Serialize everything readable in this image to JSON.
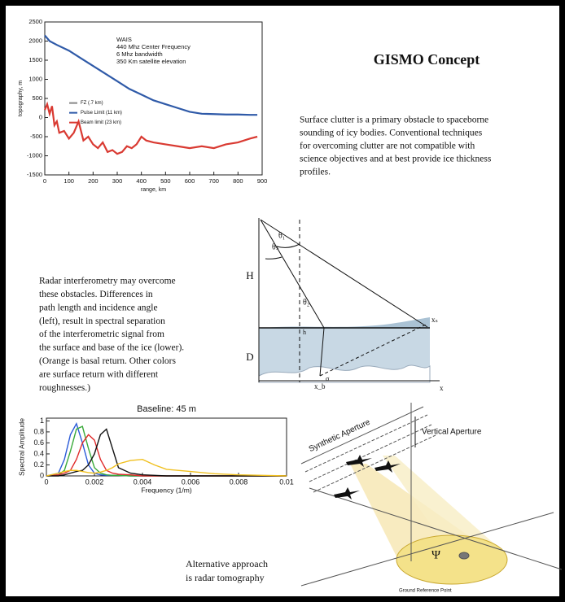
{
  "title": "GISMO Concept",
  "intro": {
    "lines": [
      "Surface clutter is a primary obstacle to spaceborne",
      "sounding of icy bodies.  Conventional techniques",
      "for overcoming clutter are not compatible with",
      "science objectives and at best provide ice thickness",
      "profiles."
    ]
  },
  "interferometry": {
    "lines": [
      "Radar interferometry may overcome",
      "these obstacles.  Differences in",
      "path length and incidence angle",
      "(left), result in spectral separation",
      "of the interferometric signal from",
      "the surface and base of the ice (lower).",
      "(Orange is basal return.  Other colors",
      "are surface return with different",
      "roughnesses.)"
    ]
  },
  "geometry": {
    "labels": {
      "H": "H",
      "D": "D",
      "theta1": "θ₁",
      "thetas": "θₛ",
      "theta2": "θ₂",
      "h": "h",
      "xs": "xₛ",
      "xb": "x_b",
      "x": "x",
      "sigma": "σ"
    }
  },
  "tomography": {
    "caption": [
      "Alternative approach",
      "is radar tomography"
    ],
    "labels": {
      "synthetic": "Synthetic Aperture",
      "vertical": "Vertical Aperture",
      "psi": "Ψ",
      "ground": "Ground Reference Point"
    }
  },
  "charts": [
    {
      "type": "line",
      "xlabel": "range, km",
      "ylabel": "topography, m",
      "annotations": [
        "WAIS",
        "440 Mhz Center Frequency",
        "6 Mhz bandwidth",
        "350 Km satellite elevation"
      ],
      "xlim": [
        0,
        900
      ],
      "ylim": [
        -1500,
        2500
      ],
      "xticks": [
        0,
        100,
        200,
        300,
        400,
        500,
        600,
        700,
        800,
        900
      ],
      "yticks": [
        -1500,
        -1000,
        -500,
        0,
        500,
        1000,
        1500,
        2000,
        2500
      ],
      "legend": "center left",
      "series": [
        {
          "name": "FZ (.7 km)",
          "color": "#888888",
          "x": [],
          "values": []
        },
        {
          "name": "Pulse Limit (11 km)",
          "color": "#2f5aa8",
          "x": [
            0,
            20,
            50,
            100,
            150,
            200,
            250,
            300,
            350,
            400,
            450,
            500,
            550,
            600,
            650,
            700,
            750,
            800,
            850,
            880
          ],
          "values": [
            2150,
            2000,
            1900,
            1750,
            1550,
            1350,
            1150,
            950,
            750,
            600,
            450,
            350,
            250,
            150,
            100,
            90,
            80,
            80,
            70,
            70
          ]
        },
        {
          "name": "Beam limit (23 km)",
          "color": "#d93a32",
          "x": [
            0,
            10,
            20,
            30,
            40,
            50,
            60,
            80,
            100,
            120,
            140,
            160,
            180,
            200,
            220,
            240,
            260,
            280,
            300,
            320,
            340,
            360,
            380,
            400,
            420,
            450,
            500,
            550,
            600,
            650,
            700,
            750,
            800,
            850,
            880
          ],
          "values": [
            200,
            350,
            100,
            300,
            -200,
            -100,
            -400,
            -350,
            -550,
            -400,
            -100,
            -600,
            -500,
            -700,
            -800,
            -650,
            -900,
            -850,
            -950,
            -900,
            -750,
            -800,
            -700,
            -500,
            -600,
            -650,
            -700,
            -750,
            -800,
            -750,
            -800,
            -700,
            -650,
            -550,
            -500
          ]
        }
      ]
    },
    {
      "type": "line",
      "title": "Baseline:  45 m",
      "xlabel": "Frequency (1/m)",
      "ylabel": "Spectral Amplitude",
      "xlim": [
        0,
        0.01
      ],
      "ylim": [
        0,
        1.05
      ],
      "xticks": [
        0,
        0.002,
        0.004,
        0.006,
        0.008,
        0.01
      ],
      "yticks": [
        0,
        0.2,
        0.4,
        0.6,
        0.8,
        1
      ],
      "x": [
        0,
        0.0005,
        0.00075,
        0.001,
        0.00125,
        0.0015,
        0.00175,
        0.002,
        0.00225,
        0.0025,
        0.00275,
        0.003,
        0.0035,
        0.004,
        0.0045,
        0.005,
        0.006,
        0.007,
        0.008,
        0.009,
        0.01
      ],
      "series": [
        {
          "color": "#2a5ad8",
          "values": [
            0,
            0.05,
            0.3,
            0.75,
            0.95,
            0.6,
            0.2,
            0.05,
            0.02,
            0.01,
            0.01,
            0.01,
            0,
            0,
            0,
            0,
            0,
            0,
            0,
            0,
            0
          ]
        },
        {
          "color": "#3aaa3a",
          "values": [
            0,
            0.02,
            0.1,
            0.45,
            0.85,
            0.9,
            0.5,
            0.15,
            0.05,
            0.02,
            0.01,
            0.01,
            0,
            0,
            0,
            0,
            0,
            0,
            0,
            0,
            0
          ]
        },
        {
          "color": "#e02a2a",
          "values": [
            0,
            0.02,
            0.05,
            0.1,
            0.3,
            0.6,
            0.75,
            0.65,
            0.3,
            0.1,
            0.05,
            0.03,
            0.02,
            0,
            0,
            0,
            0,
            0,
            0,
            0,
            0
          ]
        },
        {
          "color": "#111111",
          "values": [
            0,
            0,
            0.02,
            0.05,
            0.08,
            0.1,
            0.2,
            0.4,
            0.75,
            0.85,
            0.5,
            0.15,
            0.05,
            0.02,
            0.01,
            0,
            0,
            0,
            0,
            0,
            0
          ]
        },
        {
          "color": "#f0c020",
          "values": [
            0,
            0.05,
            0.08,
            0.1,
            0.1,
            0.08,
            0.06,
            0.05,
            0.07,
            0.1,
            0.15,
            0.22,
            0.28,
            0.3,
            0.2,
            0.12,
            0.08,
            0.04,
            0.02,
            0.01,
            0
          ]
        }
      ]
    }
  ]
}
